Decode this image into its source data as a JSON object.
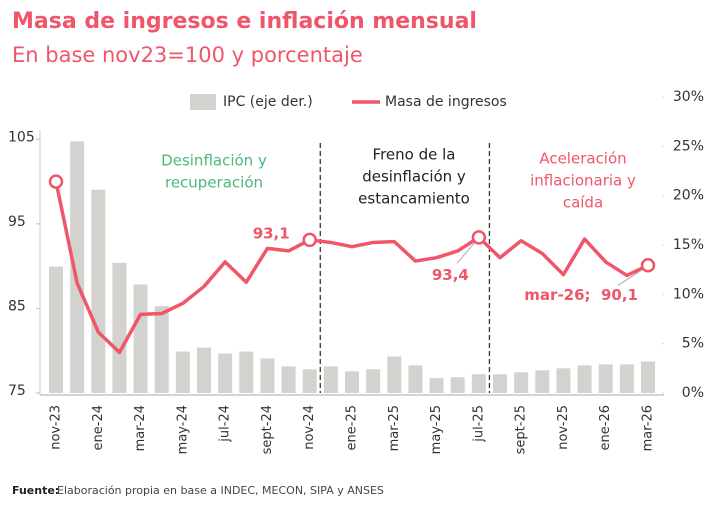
{
  "chart_data": {
    "type": "bar-line",
    "title": "Masa de ingresos e inflación mensual",
    "subtitle": "En base nov23=100 y porcentaje",
    "source_label": "Fuente:",
    "source": "Elaboración propia en base a INDEC, MECON, SIPA y ANSES",
    "categories": [
      "nov-23",
      null,
      "ene-24",
      null,
      "mar-24",
      null,
      "may-24",
      null,
      "jul-24",
      null,
      "sept-24",
      null,
      "nov-24",
      null,
      "ene-25",
      null,
      "mar-25",
      null,
      "may-25",
      null,
      "jul-25",
      null,
      "sept-25",
      null,
      "nov-25",
      null,
      "ene-26",
      null,
      "mar-26"
    ],
    "series": [
      {
        "name": "IPC (eje der.)",
        "kind": "bar",
        "axis": "y2",
        "color": "#d3d2cf",
        "values": [
          12.8,
          25.5,
          20.6,
          13.2,
          11.0,
          8.8,
          4.2,
          4.6,
          4.0,
          4.2,
          3.5,
          2.7,
          2.4,
          2.7,
          2.2,
          2.4,
          3.7,
          2.8,
          1.5,
          1.6,
          1.9,
          1.9,
          2.1,
          2.3,
          2.5,
          2.8,
          2.9,
          2.9,
          3.2
        ]
      },
      {
        "name": "Masa de ingresos",
        "kind": "line",
        "color": "#f0566a",
        "values": [
          100,
          88,
          82.2,
          79.8,
          84.3,
          84.4,
          85.6,
          87.6,
          90.5,
          88.1,
          92.1,
          91.8,
          93.1,
          92.8,
          92.3,
          92.8,
          92.9,
          90.6,
          91.0,
          91.8,
          93.4,
          91.0,
          93.0,
          91.5,
          89.0,
          93.2,
          90.5,
          88.9,
          90.1
        ],
        "value_labels": [
          null,
          null,
          null,
          null,
          null,
          null,
          null,
          null,
          null,
          null,
          null,
          null,
          "93,1",
          null,
          null,
          null,
          null,
          null,
          null,
          null,
          "93,4",
          null,
          null,
          null,
          null,
          null,
          null,
          null,
          "mar-26;  90,1"
        ]
      }
    ],
    "ylim": [
      75,
      110
    ],
    "yticks": [
      75,
      85,
      95,
      105
    ],
    "y2lim": [
      0,
      30
    ],
    "y2ticks": [
      {
        "value": 0,
        "label": "0%"
      },
      {
        "value": 5,
        "label": "5%"
      },
      {
        "value": 10,
        "label": "10%"
      },
      {
        "value": 15,
        "label": "15%"
      },
      {
        "value": 20,
        "label": "20%"
      },
      {
        "value": 25,
        "label": "25%"
      },
      {
        "value": 30,
        "label": "30%"
      }
    ],
    "annotations": [
      {
        "lines": [
          "Desinflación y",
          "recuperación"
        ],
        "color": "#4cb87a"
      },
      {
        "lines": [
          "Freno de la",
          "desinflación y",
          "estancamiento"
        ],
        "color": "#222222"
      },
      {
        "lines": [
          "Aceleración",
          "inflacionaria y",
          "caída"
        ],
        "color": "#f0566a"
      }
    ]
  }
}
